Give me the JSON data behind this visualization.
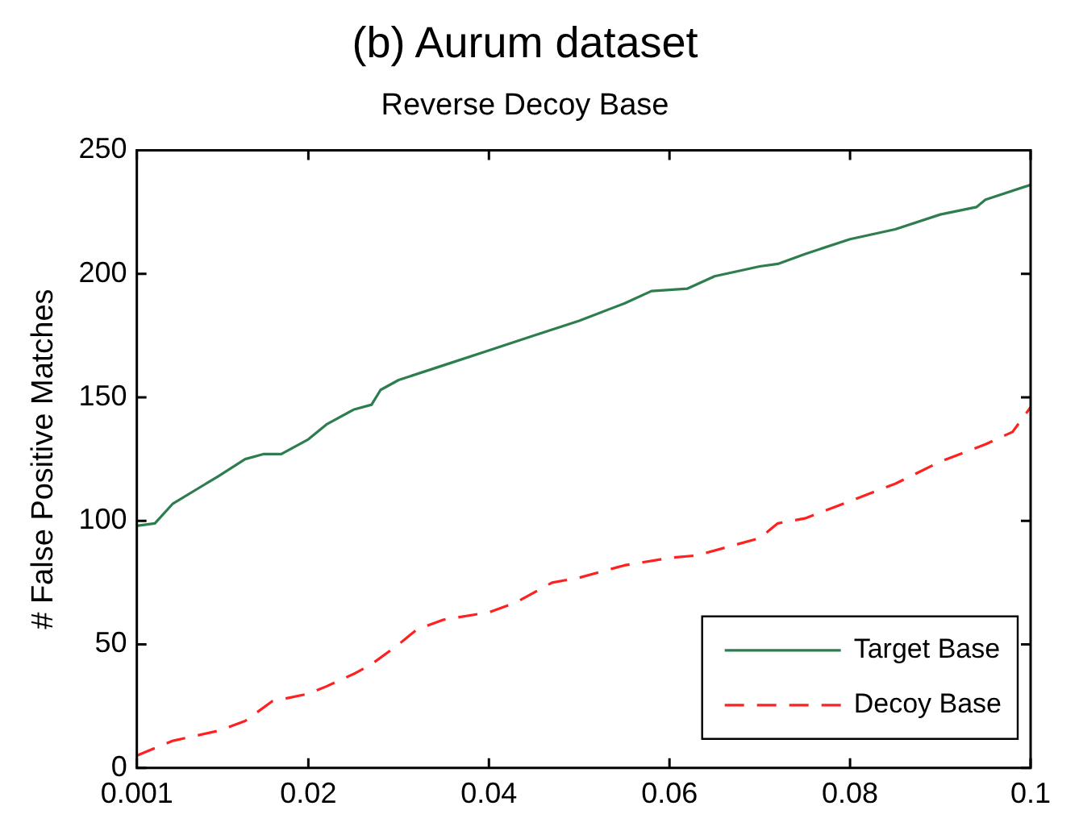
{
  "chart_data": {
    "type": "line",
    "title": "(b) Aurum dataset",
    "subtitle": "Reverse Decoy Base",
    "ylabel": "# False Positive Matches",
    "xlim": [
      0.001,
      0.1
    ],
    "xticks": [
      0.001,
      0.02,
      0.04,
      0.06,
      0.08,
      0.1
    ],
    "ylim": [
      0,
      250
    ],
    "yticks": [
      0,
      50,
      100,
      150,
      200,
      250
    ],
    "grid": false,
    "legend": "bottom right",
    "marker": "none",
    "series": [
      {
        "name": "Target Base",
        "color": "#2e7d4f",
        "line_style": "solid",
        "x": [
          0.001,
          0.003,
          0.005,
          0.01,
          0.013,
          0.015,
          0.017,
          0.02,
          0.022,
          0.025,
          0.027,
          0.028,
          0.03,
          0.035,
          0.04,
          0.045,
          0.05,
          0.055,
          0.058,
          0.062,
          0.065,
          0.07,
          0.072,
          0.075,
          0.08,
          0.085,
          0.09,
          0.094,
          0.095,
          0.1
        ],
        "values": [
          98,
          99,
          107,
          118,
          125,
          127,
          127,
          133,
          139,
          145,
          147,
          153,
          157,
          163,
          169,
          175,
          181,
          188,
          193,
          194,
          199,
          203,
          204,
          208,
          214,
          218,
          224,
          227,
          230,
          236
        ]
      },
      {
        "name": "Decoy Base",
        "color": "#ff2020",
        "line_style": "dashed",
        "x": [
          0.001,
          0.005,
          0.01,
          0.013,
          0.016,
          0.02,
          0.022,
          0.025,
          0.027,
          0.03,
          0.032,
          0.035,
          0.04,
          0.043,
          0.047,
          0.05,
          0.055,
          0.06,
          0.063,
          0.067,
          0.07,
          0.072,
          0.075,
          0.08,
          0.085,
          0.09,
          0.095,
          0.098,
          0.1
        ],
        "values": [
          5,
          11,
          15,
          19,
          27,
          30,
          33,
          38,
          42,
          50,
          56,
          60,
          63,
          67,
          75,
          77,
          82,
          85,
          86,
          90,
          93,
          99,
          101,
          108,
          115,
          124,
          131,
          136,
          146
        ]
      }
    ]
  }
}
